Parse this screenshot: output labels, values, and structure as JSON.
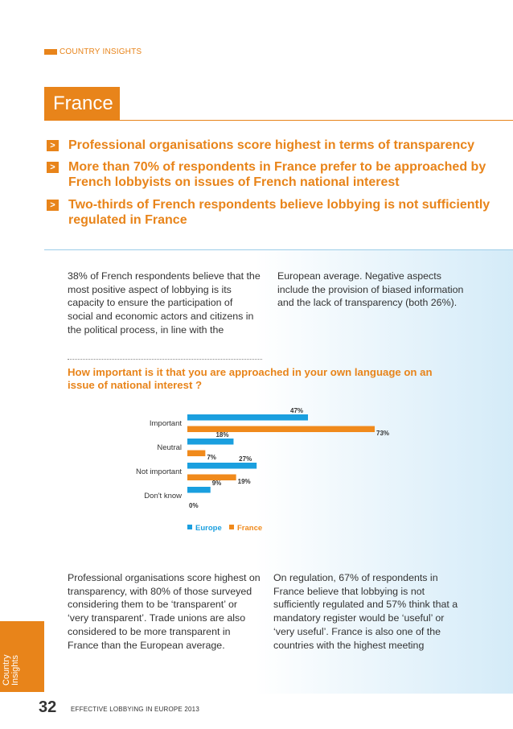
{
  "section_label": "COUNTRY INSIGHTS",
  "country": "France",
  "headlines": [
    "Professional organisations score highest in terms of transparency",
    "More than 70% of respondents in France prefer to be approached by French lobbyists on issues of French national interest",
    "Two-thirds of French respondents believe lobbying is not sufficiently regulated in France"
  ],
  "chevron": ">",
  "intro_left": "38% of French respondents believe that the most positive aspect of lobbying is its capacity to ensure the participation of social and economic actors and citizens in the political process, in line with the",
  "intro_right": "European average. Negative aspects include the provision of biased information and the lack of transparency (both 26%).",
  "chart_title": "How important is it that you are approached in your own language on an issue of national interest ?",
  "chart_data": {
    "type": "bar",
    "orientation": "horizontal",
    "title": "How important is it that you are approached in your own language on an issue of national interest ?",
    "categories": [
      "Important",
      "Neutral",
      "Not important",
      "Don't know"
    ],
    "series": [
      {
        "name": "Europe",
        "values": [
          47,
          18,
          27,
          9
        ],
        "labels": [
          "47%",
          "18%",
          "27%",
          "9%"
        ],
        "color": "#1a9fdf"
      },
      {
        "name": "France",
        "values": [
          73,
          7,
          19,
          0
        ],
        "labels": [
          "73%",
          "7%",
          "19%",
          "0%"
        ],
        "color": "#f08a1c"
      }
    ],
    "unit": "%",
    "xlim": [
      0,
      73
    ],
    "legend_position": "bottom"
  },
  "body_left": "Professional organisations score highest on transparency, with 80% of those surveyed considering them to be ‘transparent’ or ‘very transparent’. Trade unions are also considered to be more transparent in France than the European average.",
  "body_right": "On regulation, 67% of respondents in France believe that lobbying is not sufficiently regulated and 57% think that a mandatory register would be ‘useful’ or ‘very useful’. France is also one of the countries with the highest meeting",
  "sidebar": {
    "line1": "Country",
    "line2": "Insights"
  },
  "footer": {
    "page_number": "32",
    "title": "EFFECTIVE LOBBYING IN EUROPE 2013"
  }
}
